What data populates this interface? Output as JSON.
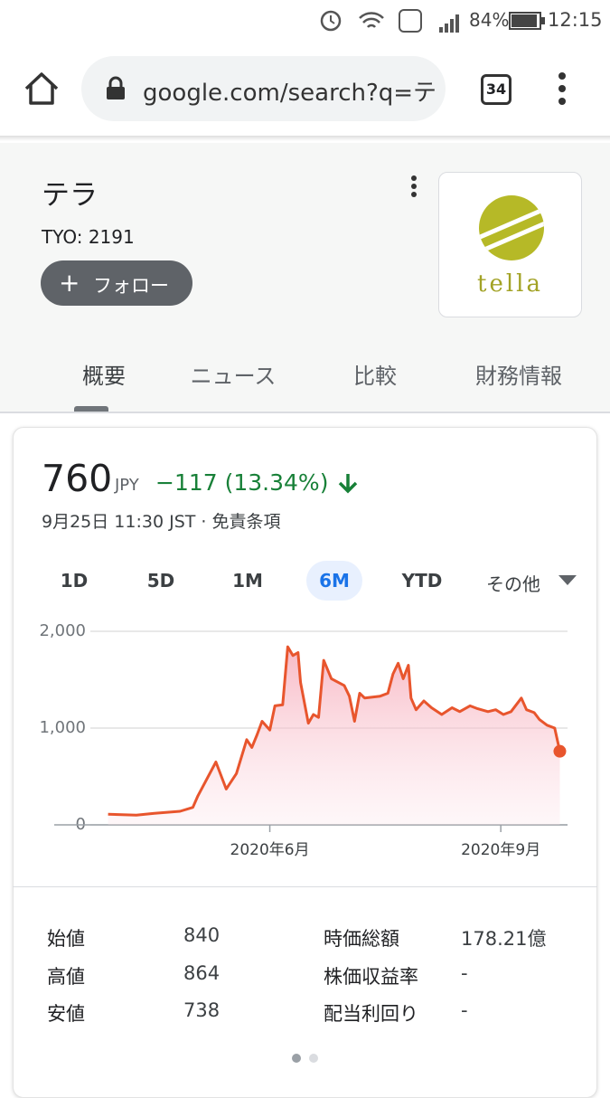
{
  "status_bar": {
    "battery": "84%",
    "time": "12:15"
  },
  "browser": {
    "url": "google.com/search?q=テ",
    "tab_count": "34"
  },
  "stock": {
    "name": "テラ",
    "ticker": "TYO: 2191",
    "follow": "フォロー",
    "logo_text": "tella",
    "tabs": [
      "概要",
      "ニュース",
      "比較",
      "財務情報"
    ]
  },
  "quote": {
    "price": "760",
    "currency": "JPY",
    "change": "−117 (13.34%)",
    "timestamp": "9月25日 11:30 JST · 免責条項"
  },
  "ranges": {
    "items": [
      "1D",
      "5D",
      "1M",
      "6M",
      "YTD",
      "その他"
    ],
    "selected": 3
  },
  "chart_data": {
    "type": "area",
    "color": "#e8552d",
    "x": [
      21,
      32,
      39,
      44,
      49,
      54,
      56,
      63,
      67,
      71,
      75,
      77,
      79,
      81,
      84,
      86,
      89,
      91,
      93,
      95,
      96,
      99,
      101,
      103,
      105,
      108,
      113,
      115,
      117,
      119,
      121,
      127,
      130,
      132,
      134,
      136,
      138,
      139,
      141,
      144,
      147,
      151,
      155,
      158,
      162,
      165,
      169,
      172,
      175,
      178,
      182,
      184,
      187,
      189,
      192,
      195,
      197
    ],
    "values": [
      110,
      100,
      120,
      130,
      140,
      180,
      300,
      650,
      370,
      530,
      880,
      800,
      930,
      1070,
      980,
      1230,
      1240,
      1840,
      1750,
      1780,
      1470,
      1050,
      1140,
      1110,
      1700,
      1510,
      1440,
      1330,
      1070,
      1360,
      1310,
      1330,
      1360,
      1560,
      1670,
      1510,
      1650,
      1310,
      1190,
      1280,
      1210,
      1140,
      1210,
      1170,
      1230,
      1200,
      1170,
      1190,
      1140,
      1170,
      1310,
      1190,
      1160,
      1090,
      1030,
      1000,
      760
    ],
    "xlim": [
      0,
      200
    ],
    "xticks": [
      {
        "value": 84,
        "label": "2020年6月"
      },
      {
        "value": 174,
        "label": "2020年9月"
      }
    ],
    "ylim": [
      0,
      2000
    ],
    "yticks": [
      0,
      {
        "value": 1000,
        "label": "1,000"
      },
      {
        "value": 2000,
        "label": "2,000"
      }
    ],
    "grid": true
  },
  "stats": {
    "left": [
      [
        "始値",
        "840"
      ],
      [
        "高値",
        "864"
      ],
      [
        "安値",
        "738"
      ]
    ],
    "right": [
      [
        "時価総額",
        "178.21億"
      ],
      [
        "株価収益率",
        "-"
      ],
      [
        "配当利回り",
        "-"
      ]
    ]
  }
}
